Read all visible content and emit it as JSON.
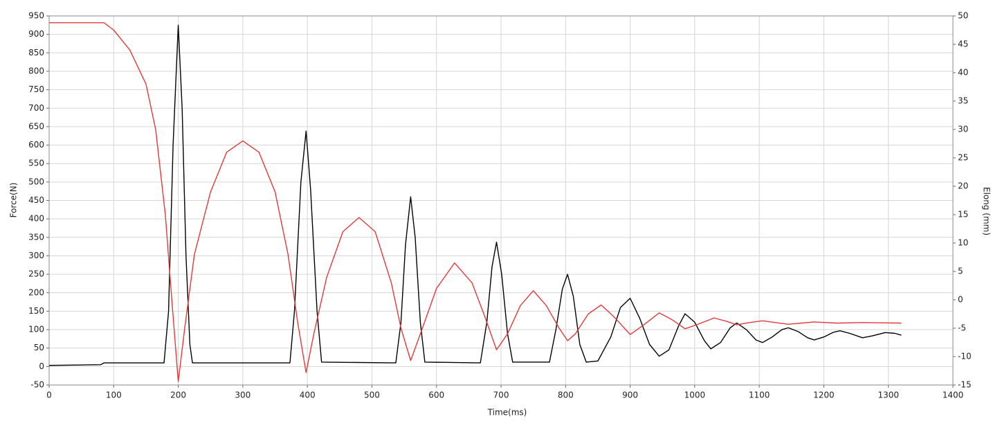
{
  "chart_data": {
    "type": "line",
    "x_label": "Time(ms)",
    "y_label": "Force(N)",
    "y2_label": "Elong (mm)",
    "xlim": [
      0,
      1400
    ],
    "xticks": [
      0,
      100,
      200,
      300,
      400,
      500,
      600,
      700,
      800,
      900,
      1000,
      1100,
      1200,
      1300,
      1400
    ],
    "ylim": [
      -50,
      950
    ],
    "yticks": [
      -50,
      0,
      50,
      100,
      150,
      200,
      250,
      300,
      350,
      400,
      450,
      500,
      550,
      600,
      650,
      700,
      750,
      800,
      850,
      900,
      950
    ],
    "y2lim": [
      -15,
      50
    ],
    "y2ticks": [
      -15,
      -10,
      -5,
      0,
      5,
      10,
      15,
      20,
      25,
      30,
      35,
      40,
      45,
      50
    ],
    "grid": true,
    "series": [
      {
        "color": "#000000",
        "x": [
          0,
          80,
          85,
          178,
          185,
          192,
          200,
          206,
          212,
          218,
          222,
          373,
          380,
          390,
          398,
          405,
          415,
          422,
          537,
          545,
          552,
          560,
          567,
          575,
          582,
          668,
          678,
          686,
          693,
          701,
          710,
          718,
          775,
          785,
          795,
          803,
          812,
          822,
          832,
          850,
          870,
          885,
          900,
          915,
          930,
          945,
          960,
          975,
          985,
          1000,
          1015,
          1025,
          1040,
          1055,
          1065,
          1080,
          1095,
          1105,
          1120,
          1135,
          1145,
          1160,
          1175,
          1185,
          1200,
          1215,
          1225,
          1240,
          1260,
          1275,
          1295,
          1310,
          1320
        ],
        "values": [
          3,
          5,
          10,
          10,
          150,
          600,
          925,
          700,
          300,
          60,
          10,
          10,
          150,
          500,
          638,
          480,
          150,
          12,
          10,
          120,
          330,
          460,
          350,
          120,
          12,
          10,
          120,
          270,
          337,
          250,
          90,
          12,
          12,
          100,
          210,
          250,
          190,
          60,
          12,
          15,
          80,
          160,
          185,
          130,
          60,
          28,
          45,
          110,
          143,
          120,
          70,
          48,
          65,
          105,
          118,
          100,
          72,
          65,
          80,
          100,
          105,
          95,
          78,
          72,
          80,
          93,
          97,
          90,
          78,
          83,
          92,
          90,
          85
        ]
      },
      {
        "color": "#e03a3a",
        "axis": "y2",
        "x": [
          0,
          85,
          100,
          125,
          150,
          165,
          180,
          190,
          200,
          210,
          225,
          250,
          275,
          300,
          325,
          350,
          370,
          385,
          398,
          410,
          430,
          455,
          480,
          505,
          530,
          545,
          560,
          575,
          600,
          628,
          655,
          675,
          693,
          710,
          730,
          750,
          770,
          790,
          803,
          815,
          835,
          855,
          875,
          900,
          920,
          945,
          965,
          985,
          1005,
          1030,
          1050,
          1065,
          1085,
          1105,
          1125,
          1145,
          1165,
          1185,
          1220,
          1260,
          1320
        ],
        "values": [
          48.8,
          48.8,
          47.5,
          44,
          38,
          30,
          15,
          0,
          -14.4,
          -5,
          8,
          19,
          26,
          28,
          26,
          19,
          8,
          -4,
          -12.8,
          -6,
          4,
          12,
          14.5,
          12,
          3,
          -5,
          -10.7,
          -6,
          2,
          6.5,
          3,
          -3,
          -8.8,
          -6,
          -1,
          1.6,
          -1,
          -5,
          -7.2,
          -6,
          -2.5,
          -0.9,
          -3,
          -6.1,
          -4.5,
          -2.3,
          -3.5,
          -5.1,
          -4.3,
          -3.2,
          -3.8,
          -4.4,
          -4,
          -3.7,
          -4,
          -4.3,
          -4.1,
          -3.9,
          -4.1,
          -4,
          -4.1
        ]
      }
    ]
  }
}
